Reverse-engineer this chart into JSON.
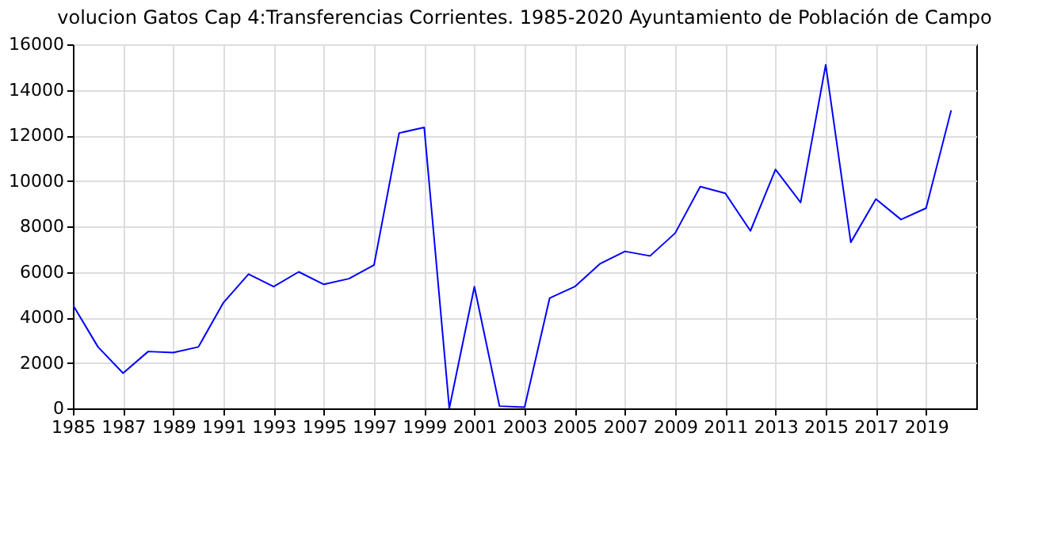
{
  "chart_data": {
    "type": "line",
    "title": "volucion Gatos Cap 4:Transferencias Corrientes. 1985-2020 Ayuntamiento de Población de Campo",
    "x": [
      1985,
      1986,
      1987,
      1988,
      1989,
      1990,
      1991,
      1992,
      1993,
      1994,
      1995,
      1996,
      1997,
      1998,
      1999,
      2000,
      2001,
      2002,
      2003,
      2004,
      2005,
      2006,
      2007,
      2008,
      2009,
      2010,
      2011,
      2012,
      2013,
      2014,
      2015,
      2016,
      2017,
      2018,
      2019,
      2020
    ],
    "series": [
      {
        "color": "#0000ff",
        "values": [
          4550,
          2700,
          1550,
          2500,
          2450,
          2700,
          4650,
          5900,
          5350,
          6000,
          5450,
          5700,
          6300,
          12100,
          12350,
          0,
          5350,
          100,
          50,
          4850,
          5350,
          6350,
          6900,
          6700,
          7700,
          9750,
          9450,
          7800,
          10500,
          9050,
          15100,
          7300,
          9200,
          8300,
          8800,
          13100
        ]
      }
    ],
    "xlim": [
      1985,
      2021
    ],
    "xticks": [
      1985,
      1987,
      1989,
      1991,
      1993,
      1995,
      1997,
      1999,
      2001,
      2003,
      2005,
      2007,
      2009,
      2011,
      2013,
      2015,
      2017,
      2019
    ],
    "ylim": [
      0,
      16000
    ],
    "yticks": [
      0,
      2000,
      4000,
      6000,
      8000,
      10000,
      12000,
      14000,
      16000
    ],
    "grid": true,
    "marker": "none",
    "line_style": "solid"
  }
}
